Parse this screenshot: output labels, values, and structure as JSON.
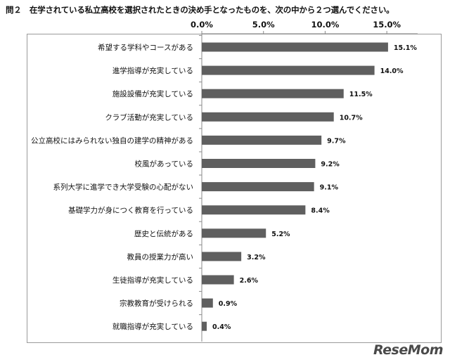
{
  "chart_data": {
    "type": "bar",
    "orientation": "horizontal",
    "title": "問２　在学されている私立高校を選択されたときの決め手となったものを、次の中から２つ選んでください。",
    "categories": [
      "希望する学科やコースがある",
      "進学指導が充実している",
      "施設設備が充実している",
      "クラブ活動が充実している",
      "公立高校にはみられない独自の建学の精神がある",
      "校風があっている",
      "系列大学に進学でき大学受験の心配がない",
      "基礎学力が身につく教育を行っている",
      "歴史と伝統がある",
      "教員の授業力が高い",
      "生徒指導が充実している",
      "宗教教育が受けられる",
      "就職指導が充実している"
    ],
    "values": [
      15.1,
      14.0,
      11.5,
      10.7,
      9.7,
      9.2,
      9.1,
      8.4,
      5.2,
      3.2,
      2.6,
      0.9,
      0.4
    ],
    "value_labels": [
      "15.1%",
      "14.0%",
      "11.5%",
      "10.7%",
      "9.7%",
      "9.2%",
      "9.1%",
      "8.4%",
      "5.2%",
      "3.2%",
      "2.6%",
      "0.9%",
      "0.4%"
    ],
    "xlim": [
      0,
      17.5
    ],
    "ticks": [
      0,
      5,
      10,
      15
    ],
    "tick_labels": [
      "0.0%",
      "5.0%",
      "10.0%",
      "15.0%"
    ],
    "axis_position": "top",
    "grid": false,
    "bar_color": "#5f5f5f"
  },
  "branding": {
    "logo": "ReseMom"
  }
}
